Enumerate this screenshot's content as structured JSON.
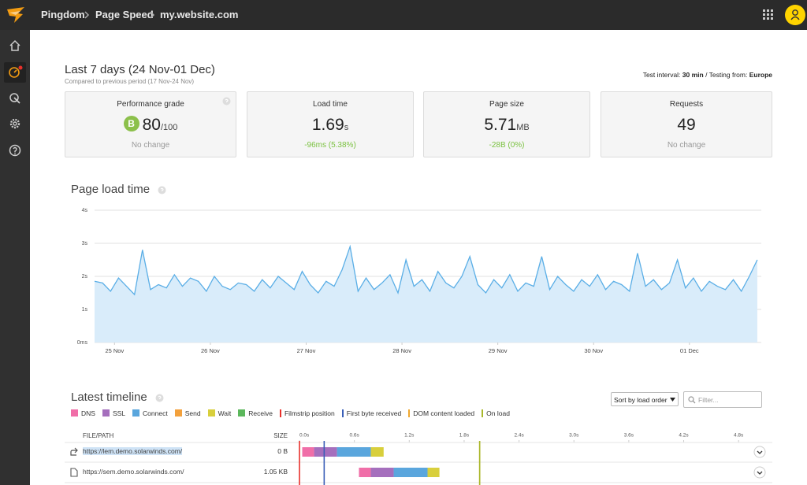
{
  "topbar": {
    "breadcrumb": [
      "Pingdom",
      "Page Speed",
      "my.website.com"
    ]
  },
  "header": {
    "title": "Last 7 days (24 Nov-01 Dec)",
    "subtitle": "Compared to previous period (17 Nov-24 Nov)",
    "interval_label": "Test interval:",
    "interval_value": "30 min",
    "location_label": "/ Testing from:",
    "location_value": "Europe"
  },
  "cards": [
    {
      "label": "Performance grade",
      "grade": "B",
      "value": "80",
      "unit": "/100",
      "change": "No change"
    },
    {
      "label": "Load time",
      "value": "1.69",
      "unit": "s",
      "change": "-96ms (5.38%)"
    },
    {
      "label": "Page size",
      "value": "5.71",
      "unit": "MB",
      "change": "-28B (0%)"
    },
    {
      "label": "Requests",
      "value": "49",
      "change": "No change"
    }
  ],
  "chart_data": {
    "type": "area",
    "title": "Page load time",
    "color": "#5aaee6",
    "fill": "#d9ecfa",
    "grid": true,
    "xlim": [
      19,
      186
    ],
    "xticks": [
      {
        "value": 24,
        "label": "25 Nov"
      },
      {
        "value": 48,
        "label": "26 Nov"
      },
      {
        "value": 72,
        "label": "27 Nov"
      },
      {
        "value": 96,
        "label": "28 Nov"
      },
      {
        "value": 120,
        "label": "29 Nov"
      },
      {
        "value": 144,
        "label": "30 Nov"
      },
      {
        "value": 168,
        "label": "01 Dec"
      }
    ],
    "ylim": [
      0,
      4
    ],
    "yticks": [
      {
        "value": 0,
        "label": "0ms"
      },
      {
        "value": 1,
        "label": "1s"
      },
      {
        "value": 2,
        "label": "2s"
      },
      {
        "value": 3,
        "label": "3s"
      },
      {
        "value": 4,
        "label": "4s"
      }
    ],
    "x": [
      19,
      21,
      23,
      25,
      27,
      29,
      31,
      33,
      35,
      37,
      39,
      41,
      43,
      45,
      47,
      49,
      51,
      53,
      55,
      57,
      59,
      61,
      63,
      65,
      67,
      69,
      71,
      73,
      75,
      77,
      79,
      81,
      83,
      85,
      87,
      89,
      91,
      93,
      95,
      97,
      99,
      101,
      103,
      105,
      107,
      109,
      111,
      113,
      115,
      117,
      119,
      121,
      123,
      125,
      127,
      129,
      131,
      133,
      135,
      137,
      139,
      141,
      143,
      145,
      147,
      149,
      151,
      153,
      155,
      157,
      159,
      161,
      163,
      165,
      167,
      169,
      171,
      173,
      175,
      177,
      179,
      181,
      183,
      185
    ],
    "values": [
      1.85,
      1.8,
      1.55,
      1.95,
      1.7,
      1.45,
      2.8,
      1.6,
      1.75,
      1.65,
      2.05,
      1.7,
      1.95,
      1.85,
      1.55,
      2.0,
      1.7,
      1.6,
      1.8,
      1.75,
      1.55,
      1.9,
      1.65,
      2.0,
      1.8,
      1.6,
      2.15,
      1.75,
      1.5,
      1.85,
      1.7,
      2.2,
      2.9,
      1.55,
      1.95,
      1.6,
      1.8,
      2.05,
      1.5,
      2.5,
      1.7,
      1.9,
      1.55,
      2.15,
      1.8,
      1.65,
      2.0,
      2.6,
      1.75,
      1.5,
      1.9,
      1.65,
      2.05,
      1.55,
      1.8,
      1.7,
      2.6,
      1.6,
      2.0,
      1.75,
      1.55,
      1.9,
      1.7,
      2.05,
      1.6,
      1.85,
      1.75,
      1.55,
      2.7,
      1.7,
      1.9,
      1.6,
      1.8,
      2.5,
      1.65,
      1.95,
      1.55,
      1.85,
      1.7,
      1.6,
      1.9,
      1.55,
      2.0,
      2.5
    ]
  },
  "timeline": {
    "title": "Latest timeline",
    "sort": "Sort by load order",
    "filter_placeholder": "Filter...",
    "phases": [
      {
        "label": "DNS",
        "color": "#f06ea8"
      },
      {
        "label": "SSL",
        "color": "#a56fbd"
      },
      {
        "label": "Connect",
        "color": "#5aa6dd"
      },
      {
        "label": "Send",
        "color": "#f3a13c"
      },
      {
        "label": "Wait",
        "color": "#d8cf3c"
      },
      {
        "label": "Receive",
        "color": "#5cb85c"
      }
    ],
    "markers": [
      {
        "label": "Filmstrip position",
        "color": "#e8302b",
        "time": 0.0
      },
      {
        "label": "First byte received",
        "color": "#3a5fb8",
        "time": 0.27
      },
      {
        "label": "DOM content loaded",
        "color": "#f0a830",
        "time": 1.97
      },
      {
        "label": "On load",
        "color": "#a8b82a",
        "time": 1.97
      }
    ],
    "columns": [
      "FILE/PATH",
      "SIZE"
    ],
    "xlim": [
      0,
      5.1
    ],
    "ticks": [
      {
        "value": 0,
        "label": "0.0s"
      },
      {
        "value": 0.6,
        "label": "0.6s"
      },
      {
        "value": 1.2,
        "label": "1.2s"
      },
      {
        "value": 1.8,
        "label": "1.8s"
      },
      {
        "value": 2.4,
        "label": "2.4s"
      },
      {
        "value": 3.0,
        "label": "3.0s"
      },
      {
        "value": 3.6,
        "label": "3.6s"
      },
      {
        "value": 4.2,
        "label": "4.2s"
      },
      {
        "value": 4.8,
        "label": "4.8s"
      }
    ],
    "rows": [
      {
        "url": "https://lem.demo.solarwinds.com/",
        "size": "0 B",
        "start": 0.03,
        "durations": [
          0.13,
          0.25,
          0.37,
          null,
          0.14,
          null
        ]
      },
      {
        "url": "https://sem.demo.solarwinds.com/",
        "size": "1.05 KB",
        "start": 0.65,
        "durations": [
          0.13,
          0.25,
          0.37,
          null,
          0.13,
          null
        ]
      }
    ]
  }
}
